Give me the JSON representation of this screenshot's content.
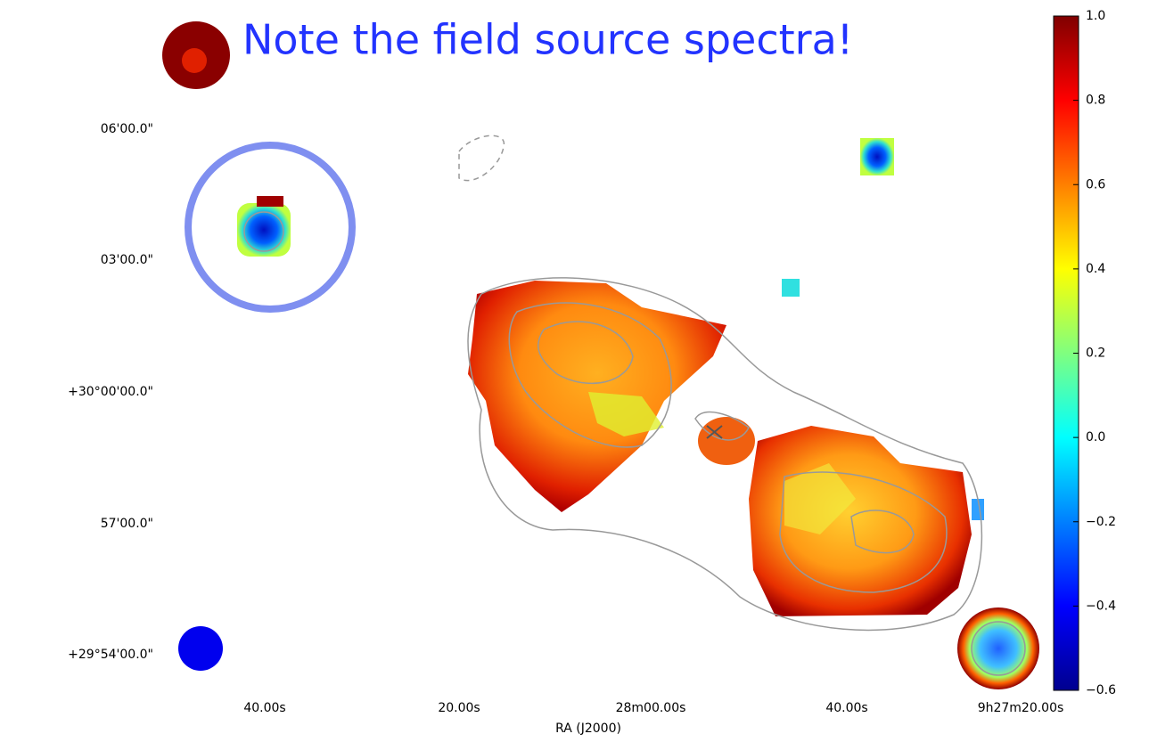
{
  "chart_data": {
    "type": "image",
    "title": "Note the field source spectra!",
    "x_label": "RA (J2000)",
    "x_tick_labels": [
      "40.00s",
      "20.00s",
      "28m00.00s",
      "40.00s",
      "9h27m20.00s"
    ],
    "y_tick_labels": [
      "06'00.0\"",
      "03'00.0\"",
      "+30°00'00.0\"",
      "57'00.0\"",
      "+29°54'00.0\""
    ],
    "colorbar": {
      "ylim": [
        -0.6,
        1.0
      ],
      "yticks": [
        {
          "value": -0.6,
          "label": "−0.6"
        },
        {
          "value": -0.4,
          "label": "−0.4"
        },
        {
          "value": -0.2,
          "label": "−0.2"
        },
        {
          "value": 0,
          "label": "0.0"
        },
        0.2,
        0.4,
        0.6,
        0.8,
        {
          "value": 1,
          "label": "1.0"
        }
      ]
    }
  }
}
